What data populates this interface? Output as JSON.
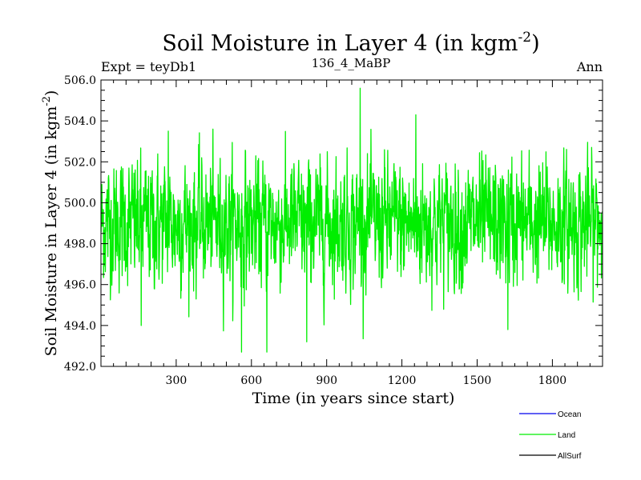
{
  "chart_data": {
    "type": "line",
    "title_main": "Soil Moisture in Layer 4 (in kgm",
    "title_sup": "-2",
    "title_close": ")",
    "subtitle_left": "Expt = teyDb1",
    "subtitle_center": "136_4_MaBP",
    "subtitle_right": "Ann",
    "xlabel": "Time (in years since start)",
    "ylabel_main": "Soil Moisture in Layer 4 (in kgm",
    "ylabel_sup": "-2",
    "ylabel_close": ")",
    "xlim": [
      0,
      2000
    ],
    "ylim": [
      492.0,
      506.0
    ],
    "xticks": [
      300,
      600,
      900,
      1200,
      1500,
      1800
    ],
    "xtick_labels": [
      "300",
      "600",
      "900",
      "1200",
      "1500",
      "1800"
    ],
    "yticks": [
      492,
      494,
      496,
      498,
      500,
      502,
      504,
      506
    ],
    "ytick_labels": [
      "492.0",
      "494.0",
      "496.0",
      "498.0",
      "500.0",
      "502.0",
      "504.0",
      "506.0"
    ],
    "legend_position": "bottom-right",
    "series": [
      {
        "name": "Land",
        "color": "#00ee00",
        "mean": 499.0,
        "spread": 1.4,
        "n_points": 2000,
        "key_points": [
          {
            "x": 1033,
            "y": 505.6
          },
          {
            "x": 560,
            "y": 492.7
          },
          {
            "x": 661,
            "y": 492.7
          },
          {
            "x": 820,
            "y": 493.2
          },
          {
            "x": 160,
            "y": 494.0
          },
          {
            "x": 1622,
            "y": 493.8
          },
          {
            "x": 1255,
            "y": 504.3
          },
          {
            "x": 268,
            "y": 503.5
          }
        ]
      }
    ],
    "legend": [
      {
        "label": "Ocean",
        "color": "#0000ee"
      },
      {
        "label": "Land",
        "color": "#00ee00"
      },
      {
        "label": "AllSurf",
        "color": "#000000"
      }
    ]
  }
}
